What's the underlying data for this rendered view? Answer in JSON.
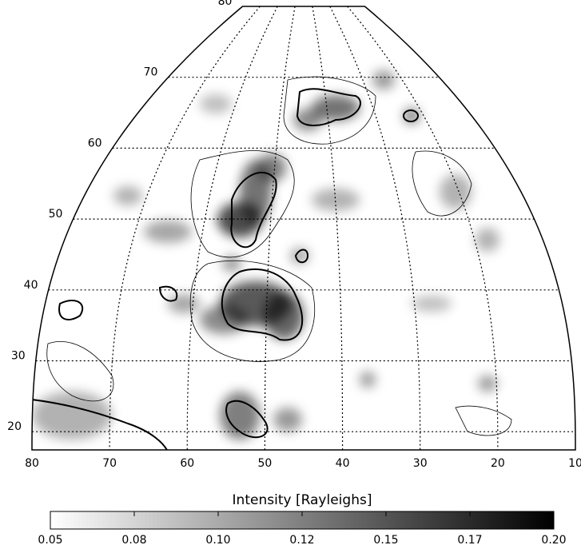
{
  "map": {
    "latitudes": [
      80,
      70,
      60,
      50,
      40,
      30,
      20
    ],
    "longitudes": [
      80,
      70,
      60,
      50,
      40,
      30,
      20,
      10
    ],
    "colorbar": {
      "label": "Intensity [Rayleighs]",
      "ticks": [
        "0.05",
        "0.08",
        "0.10",
        "0.12",
        "0.15",
        "0.17",
        "0.20"
      ]
    }
  }
}
